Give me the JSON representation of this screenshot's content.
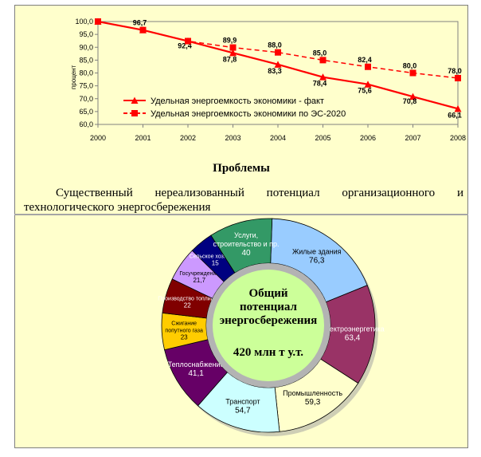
{
  "problems_title": "Проблемы",
  "problems_text_line1": "Существенный нереализованный потенциал организационного и",
  "problems_text_line2": "технологического энергосбережения",
  "center_text": {
    "line1": "Общий",
    "line2": "потенциал",
    "line3": "энергосбережения",
    "total": "420 млн т у.т."
  },
  "colors": {
    "panel": "#ffffcc",
    "series_line": "#ff0000",
    "center_fill": "#ccff99",
    "center_ring": "#b3b3b3"
  },
  "chart_data": [
    {
      "type": "line",
      "x": [
        "2000",
        "2001",
        "2002",
        "2003",
        "2004",
        "2005",
        "2006",
        "2007",
        "2008"
      ],
      "y_ticks": [
        "60,0",
        "65,0",
        "70,0",
        "75,0",
        "80,0",
        "85,0",
        "90,0",
        "95,0",
        "100,0"
      ],
      "ylim": [
        60,
        100
      ],
      "ylabel": "процент",
      "legend_position": "lower-left",
      "series": [
        {
          "name": "Удельная энергоемкость экономики - факт",
          "values": [
            100.0,
            96.7,
            92.4,
            87.8,
            83.3,
            78.4,
            75.6,
            70.8,
            66.1
          ],
          "labels": [
            "",
            "96,7",
            "92,4",
            "87,8",
            "83,3",
            "78,4",
            "75,6",
            "70,8",
            "66,1"
          ],
          "style": "solid",
          "marker": "triangle",
          "color": "#ff0000"
        },
        {
          "name": "Удельная энергоемкость экономики по ЭС-2020",
          "values": [
            100.0,
            96.7,
            92.4,
            89.9,
            88.0,
            85.0,
            82.4,
            80.0,
            78.0
          ],
          "labels": [
            "",
            "",
            "",
            "89,9",
            "88,0",
            "85,0",
            "82,4",
            "80,0",
            "78,0"
          ],
          "style": "dashed",
          "marker": "square",
          "color": "#ff0000"
        }
      ]
    },
    {
      "type": "pie",
      "style": "donut",
      "slices": [
        {
          "name": "Жилые здания",
          "value": 76.3,
          "value_label": "76,3",
          "color": "#99ccff"
        },
        {
          "name": "Электроэнергетика",
          "value": 63.4,
          "value_label": "63,4",
          "color": "#993366"
        },
        {
          "name": "Промышленность",
          "value": 59.3,
          "value_label": "59,3",
          "color": "#ffffcc"
        },
        {
          "name": "Транспорт",
          "value": 54.7,
          "value_label": "54,7",
          "color": "#ccffff"
        },
        {
          "name": "Теплоснабжение",
          "value": 41.1,
          "value_label": "41,1",
          "color": "#660066"
        },
        {
          "name": "Сжигание попутного газа",
          "value": 23,
          "value_label": "23",
          "color": "#ffcc00"
        },
        {
          "name": "Производство топлива",
          "value": 22,
          "value_label": "22",
          "color": "#800000"
        },
        {
          "name": "Госучреждения",
          "value": 21.7,
          "value_label": "21,7",
          "color": "#cc99ff"
        },
        {
          "name": "Сельское хозяйство",
          "value": 15,
          "value_label": "15",
          "color": "#000080"
        },
        {
          "name": "Услуги, строительство и пр.",
          "value": 40,
          "value_label": "40",
          "color": "#339966"
        }
      ]
    }
  ]
}
